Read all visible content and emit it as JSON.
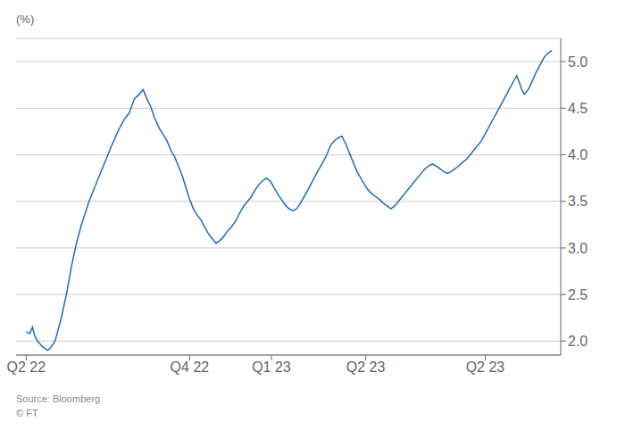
{
  "chart_data": {
    "type": "line",
    "ylabel": "(%)",
    "annotations": [
      "Source: Bloomberg",
      "© FT"
    ],
    "color": "#1f6db5",
    "grid": true,
    "xlim": [
      -8,
      425
    ],
    "xticks": [
      {
        "value": 0,
        "label": "Q2 22"
      },
      {
        "value": 130,
        "label": "Q4 22"
      },
      {
        "value": 195,
        "label": "Q1 23"
      },
      {
        "value": 270,
        "label": "Q2 23"
      },
      {
        "value": 365,
        "label": "Q2 23"
      }
    ],
    "ylim": [
      1.85,
      5.25
    ],
    "yticks": [
      {
        "value": 2.0,
        "label": "2.0"
      },
      2.5,
      {
        "value": 3.0,
        "label": "3.0"
      },
      3.5,
      {
        "value": 4.0,
        "label": "4.0"
      },
      4.5,
      {
        "value": 5.0,
        "label": "5.0"
      }
    ],
    "x": [
      0,
      3,
      5,
      7,
      9,
      11,
      13,
      15,
      17,
      19,
      21,
      23,
      25,
      28,
      32,
      36,
      40,
      44,
      50,
      56,
      62,
      68,
      74,
      78,
      82,
      86,
      90,
      93,
      96,
      99,
      102,
      106,
      109,
      112,
      115,
      118,
      121,
      124,
      127,
      130,
      133,
      136,
      139,
      142,
      145,
      148,
      151,
      154,
      157,
      160,
      163,
      167,
      170,
      173,
      176,
      179,
      182,
      185,
      188,
      191,
      194,
      197,
      200,
      203,
      206,
      209,
      212,
      215,
      218,
      221,
      224,
      227,
      230,
      233,
      236,
      239,
      242,
      245,
      248,
      251,
      254,
      257,
      260,
      263,
      266,
      269,
      272,
      275,
      278,
      281,
      284,
      287,
      290,
      293,
      296,
      299,
      302,
      305,
      308,
      311,
      314,
      317,
      320,
      323,
      326,
      329,
      332,
      335,
      338,
      341,
      344,
      347,
      350,
      353,
      356,
      359,
      362,
      364,
      366,
      368,
      370,
      372,
      374,
      376,
      378,
      380,
      382,
      384,
      386,
      388,
      390,
      392,
      394,
      396,
      398,
      400,
      402,
      404,
      406,
      408,
      410,
      412,
      414,
      416,
      418
    ],
    "values": [
      2.1,
      2.08,
      2.15,
      2.05,
      2.0,
      1.97,
      1.94,
      1.92,
      1.9,
      1.92,
      1.96,
      2.0,
      2.1,
      2.25,
      2.5,
      2.8,
      3.05,
      3.25,
      3.5,
      3.7,
      3.9,
      4.1,
      4.28,
      4.38,
      4.45,
      4.6,
      4.65,
      4.7,
      4.6,
      4.52,
      4.4,
      4.28,
      4.22,
      4.15,
      4.05,
      3.98,
      3.88,
      3.78,
      3.65,
      3.52,
      3.42,
      3.35,
      3.3,
      3.22,
      3.15,
      3.1,
      3.05,
      3.08,
      3.12,
      3.18,
      3.22,
      3.3,
      3.38,
      3.45,
      3.5,
      3.55,
      3.62,
      3.68,
      3.72,
      3.75,
      3.72,
      3.65,
      3.58,
      3.52,
      3.46,
      3.42,
      3.4,
      3.42,
      3.48,
      3.55,
      3.62,
      3.7,
      3.78,
      3.85,
      3.92,
      4.0,
      4.1,
      4.15,
      4.18,
      4.2,
      4.12,
      4.02,
      3.92,
      3.82,
      3.75,
      3.68,
      3.62,
      3.58,
      3.55,
      3.52,
      3.48,
      3.45,
      3.42,
      3.45,
      3.5,
      3.55,
      3.6,
      3.65,
      3.7,
      3.75,
      3.8,
      3.85,
      3.88,
      3.9,
      3.88,
      3.85,
      3.82,
      3.8,
      3.82,
      3.85,
      3.88,
      3.92,
      3.95,
      4.0,
      4.05,
      4.1,
      4.15,
      4.2,
      4.25,
      4.3,
      4.35,
      4.4,
      4.45,
      4.5,
      4.55,
      4.6,
      4.65,
      4.7,
      4.75,
      4.8,
      4.85,
      4.78,
      4.7,
      4.65,
      4.68,
      4.72,
      4.78,
      4.84,
      4.9,
      4.95,
      5.0,
      5.05,
      5.08,
      5.1,
      5.12
    ]
  }
}
